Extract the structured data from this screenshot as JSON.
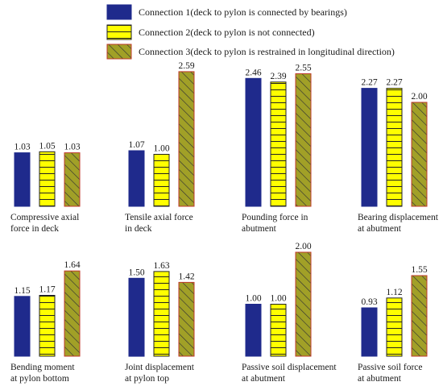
{
  "chart_data": {
    "type": "bar",
    "legend_position": "top",
    "grid": false,
    "series": [
      {
        "name": "Connection 1(deck to pylon is connected by bearings)",
        "color": "#1f2a8c",
        "pattern": "solid"
      },
      {
        "name": "Connection 2(deck to pylon is not connected)",
        "color": "#ffff00",
        "pattern": "horizontal-lines"
      },
      {
        "name": "Connection 3(deck to pylon is restrained in longitudinal direction)",
        "color": "#a1a027",
        "pattern": "diagonal-hatch"
      }
    ],
    "panels": [
      {
        "row": 0,
        "label_lines": [
          "Compressive axial",
          "force in  deck"
        ],
        "values": [
          1.03,
          1.05,
          1.03
        ],
        "labels": [
          "1.03",
          "1.05",
          "1.03"
        ]
      },
      {
        "row": 0,
        "label_lines": [
          "Tensile axial force",
          " in deck"
        ],
        "values": [
          1.07,
          1.0,
          2.59
        ],
        "labels": [
          "1.07",
          "1.00",
          "2.59"
        ]
      },
      {
        "row": 0,
        "label_lines": [
          "Pounding force in",
          "abutment"
        ],
        "values": [
          2.46,
          2.39,
          2.55
        ],
        "labels": [
          "2.46",
          "2.39",
          "2.55"
        ]
      },
      {
        "row": 0,
        "label_lines": [
          "Bearing displacement",
          "at abutment"
        ],
        "values": [
          2.27,
          2.27,
          2.0
        ],
        "labels": [
          "2.27",
          "2.27",
          "2.00"
        ]
      },
      {
        "row": 1,
        "label_lines": [
          "Bending moment",
          "at pylon bottom"
        ],
        "values": [
          1.15,
          1.17,
          1.64
        ],
        "labels": [
          "1.15",
          "1.17",
          "1.64"
        ]
      },
      {
        "row": 1,
        "label_lines": [
          "Joint displacement",
          "at pylon top"
        ],
        "values": [
          1.5,
          1.63,
          1.42
        ],
        "labels": [
          "1.50",
          "1.63",
          "1.42"
        ]
      },
      {
        "row": 1,
        "label_lines": [
          "Passive soil displacement",
          "at abutment"
        ],
        "values": [
          1.0,
          1.0,
          2.0
        ],
        "labels": [
          "1.00",
          "1.00",
          "2.00"
        ]
      },
      {
        "row": 1,
        "label_lines": [
          "Passive soil force",
          "at abutment"
        ],
        "values": [
          0.93,
          1.12,
          1.55
        ],
        "labels": [
          "0.93",
          "1.12",
          "1.55"
        ]
      }
    ]
  }
}
